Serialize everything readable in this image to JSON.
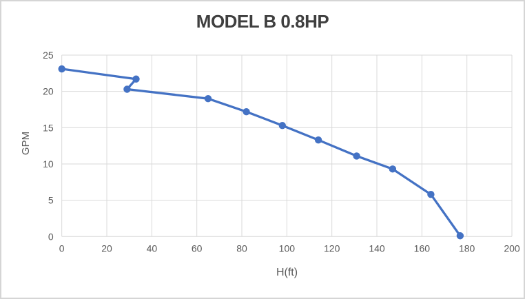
{
  "window": {
    "background": "#ffffff",
    "border_color": "#d5d5d5"
  },
  "chart_data": {
    "type": "line",
    "title": "MODEL B 0.8HP",
    "xlabel": "H(ft)",
    "ylabel": "GPM",
    "series": [
      {
        "name": "MODEL B 0.8HP",
        "x": [
          0,
          33,
          29,
          65,
          82,
          98,
          114,
          131,
          147,
          164,
          177
        ],
        "y": [
          23.1,
          21.7,
          20.3,
          19.0,
          17.2,
          15.3,
          13.3,
          11.1,
          9.3,
          5.8,
          0.1
        ]
      }
    ],
    "xlim": [
      0,
      200
    ],
    "ylim": [
      0,
      25
    ],
    "x_ticks": [
      0,
      20,
      40,
      60,
      80,
      100,
      120,
      140,
      160,
      180,
      200
    ],
    "y_ticks": [
      0,
      5,
      10,
      15,
      20,
      25
    ],
    "grid": true,
    "legend_position": "none",
    "marker": "circle",
    "colors": {
      "line": "#4472C4",
      "marker": "#4472C4",
      "gridline": "#D9D9D9",
      "tick_label": "#595959",
      "axis_title": "#595959",
      "title": "#3F3F3F"
    }
  }
}
